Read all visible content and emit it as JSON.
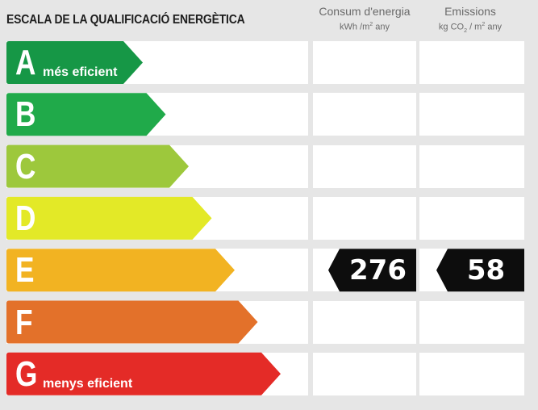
{
  "header": {
    "title": "ESCALA DE LA QUALIFICACIÓ ENERGÈTICA",
    "consum_title": "Consum d'energia",
    "consum_unit_a": "kWh /m",
    "consum_unit_sup": "2",
    "consum_unit_b": " any",
    "emissions_title": "Emissions",
    "emissions_unit_a": "kg CO",
    "emissions_unit_sub": "2",
    "emissions_unit_b": " / m",
    "emissions_unit_sup": "2",
    "emissions_unit_c": " any"
  },
  "chart_data": {
    "type": "table",
    "title": "ESCALA DE LA QUALIFICACIÓ ENERGÈTICA",
    "columns": [
      "Consum d'energia kWh/m² any",
      "Emissions kg CO₂ / m² any"
    ],
    "classes": [
      {
        "letter": "A",
        "label": "més eficient",
        "color": "#169746"
      },
      {
        "letter": "B",
        "label": "",
        "color": "#20aa4a"
      },
      {
        "letter": "C",
        "label": "",
        "color": "#9dc83c"
      },
      {
        "letter": "D",
        "label": "",
        "color": "#e3e927"
      },
      {
        "letter": "E",
        "label": "",
        "color": "#f2b322"
      },
      {
        "letter": "F",
        "label": "",
        "color": "#e3712a"
      },
      {
        "letter": "G",
        "label": "menys eficient",
        "color": "#e42b27"
      }
    ],
    "rating": {
      "class": "E",
      "consum_value": "276",
      "emissions_value": "58",
      "indicator_color": "#0d0d0d"
    }
  }
}
